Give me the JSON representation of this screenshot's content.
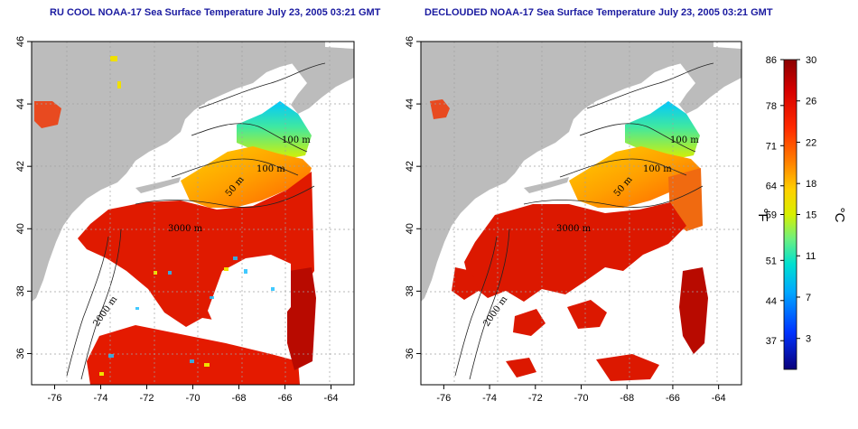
{
  "panels": [
    {
      "title": "RU COOL NOAA-17 Sea Surface Temperature July 23, 2005 03:21 GMT",
      "contour_labels": [
        "100 m",
        "100 m",
        "50 m",
        "3000 m",
        "2000 m"
      ]
    },
    {
      "title": "DECLOUDED NOAA-17 Sea Surface Temperature July 23, 2005 03:21 GMT",
      "contour_labels": [
        "100 m",
        "100 m",
        "50 m",
        "3000 m",
        "2000 m"
      ]
    }
  ],
  "colorbar": {
    "fahrenheit_ticks": [
      "86",
      "78",
      "71",
      "64",
      "59",
      "51",
      "44",
      "37"
    ],
    "celsius_ticks": [
      "30",
      "26",
      "22",
      "18",
      "15",
      "11",
      "7",
      "3"
    ],
    "fahrenheit_unit": "°F",
    "celsius_unit": "°C",
    "colors": [
      "#0a007a",
      "#0033ff",
      "#00a8ff",
      "#00e0d0",
      "#6cf080",
      "#d8f000",
      "#ffd000",
      "#ff8000",
      "#ff2a00",
      "#d60000",
      "#8b0000"
    ]
  },
  "chart_data": [
    {
      "type": "heatmap",
      "title": "RU COOL NOAA-17 Sea Surface Temperature July 23, 2005 03:21 GMT",
      "x_ticks": [
        "-76",
        "-74",
        "-72",
        "-70",
        "-68",
        "-66",
        "-64"
      ],
      "y_ticks": [
        "36",
        "38",
        "40",
        "42",
        "44",
        "46"
      ],
      "xlim": [
        -77,
        -63
      ],
      "ylim": [
        35,
        46
      ],
      "grid": true,
      "units": [
        "°F",
        "°C"
      ],
      "colorbar_range_c": [
        0,
        30
      ]
    },
    {
      "type": "heatmap",
      "title": "DECLOUDED NOAA-17 Sea Surface Temperature July 23, 2005 03:21 GMT",
      "x_ticks": [
        "-76",
        "-74",
        "-72",
        "-70",
        "-68",
        "-66",
        "-64"
      ],
      "y_ticks": [
        "36",
        "38",
        "40",
        "42",
        "44",
        "46"
      ],
      "xlim": [
        -77,
        -63
      ],
      "ylim": [
        35,
        46
      ],
      "grid": true,
      "units": [
        "°F",
        "°C"
      ],
      "colorbar_range_c": [
        0,
        30
      ]
    }
  ]
}
